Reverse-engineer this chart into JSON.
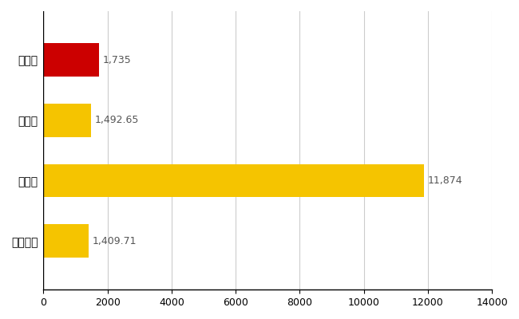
{
  "categories": [
    "全国平均",
    "県最大",
    "県平均",
    "香取市"
  ],
  "values": [
    1409.71,
    11874,
    1492.65,
    1735
  ],
  "bar_colors": [
    "#F5C400",
    "#F5C400",
    "#F5C400",
    "#CC0000"
  ],
  "labels": [
    "1,409.71",
    "11,874",
    "1,492.65",
    "1,735"
  ],
  "xlim": [
    0,
    14000
  ],
  "xticks": [
    0,
    2000,
    4000,
    6000,
    8000,
    10000,
    12000,
    14000
  ],
  "bar_height": 0.55,
  "grid_color": "#CCCCCC",
  "label_fontsize": 9,
  "tick_fontsize": 9,
  "ytick_fontsize": 10,
  "label_color": "#555555"
}
